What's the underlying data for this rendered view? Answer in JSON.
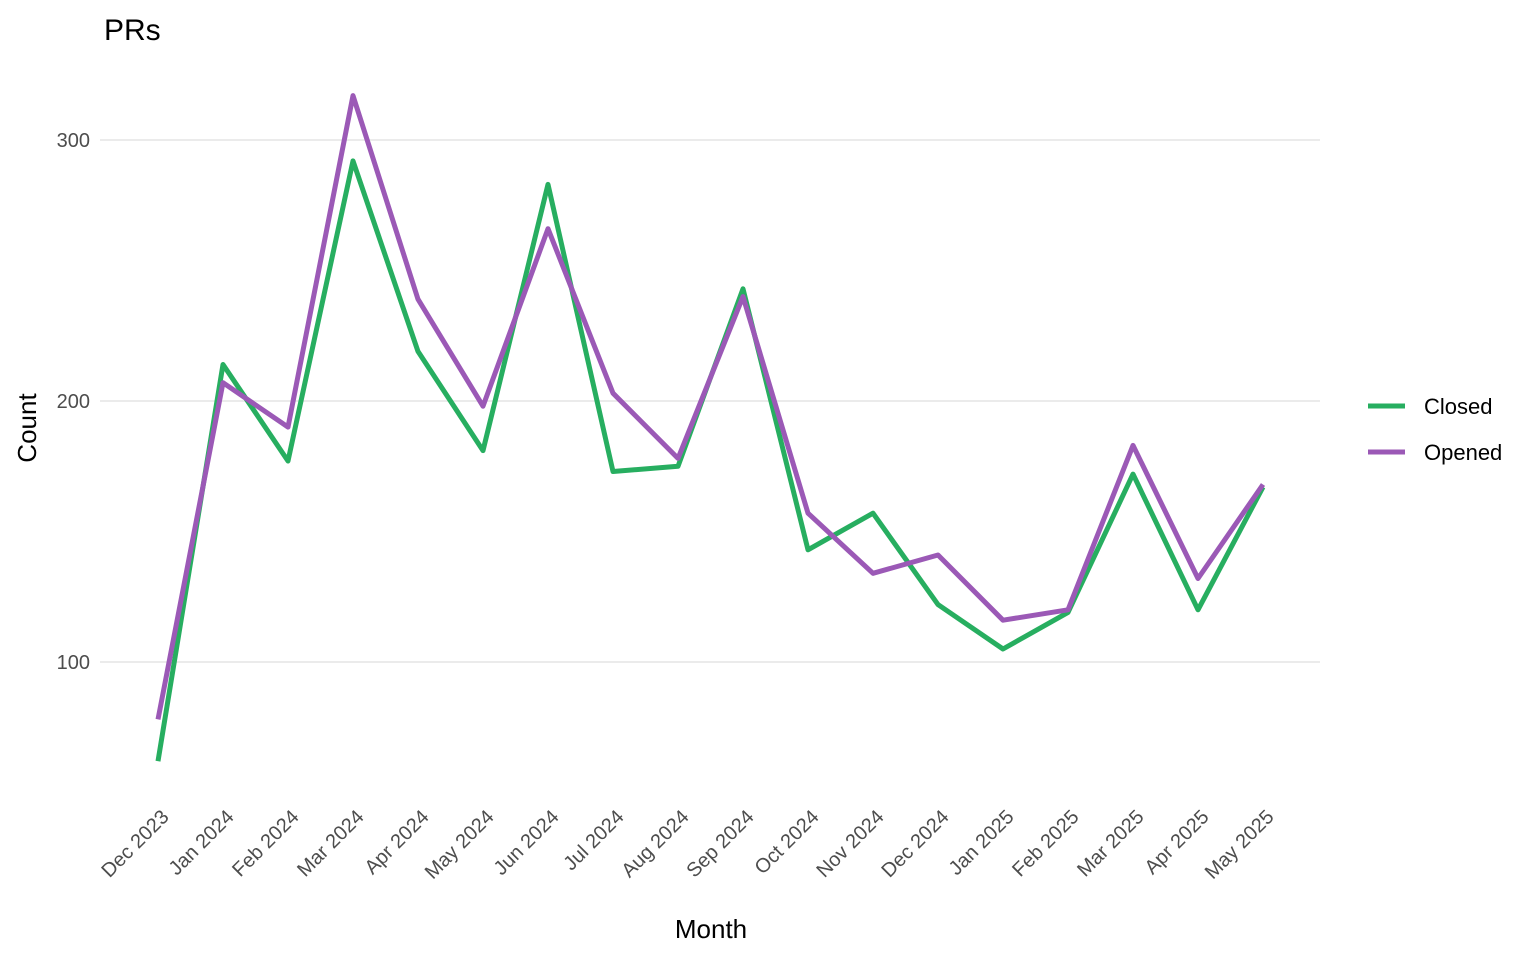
{
  "chart_data": {
    "type": "line",
    "title": "PRs",
    "xlabel": "Month",
    "ylabel": "Count",
    "categories": [
      "Dec 2023",
      "Jan 2024",
      "Feb 2024",
      "Mar 2024",
      "Apr 2024",
      "May 2024",
      "Jun 2024",
      "Jul 2024",
      "Aug 2024",
      "Sep 2024",
      "Oct 2024",
      "Nov 2024",
      "Dec 2024",
      "Jan 2025",
      "Feb 2025",
      "Mar 2025",
      "Apr 2025",
      "May 2025"
    ],
    "y_ticks": [
      100,
      200,
      300
    ],
    "ylim": [
      60,
      320
    ],
    "grid": true,
    "legend_position": "right",
    "series": [
      {
        "name": "Closed",
        "color": "#27ae60",
        "values": [
          62,
          214,
          177,
          292,
          219,
          181,
          283,
          173,
          175,
          243,
          143,
          157,
          122,
          105,
          119,
          172,
          120,
          167
        ]
      },
      {
        "name": "Opened",
        "color": "#9b59b6",
        "values": [
          78,
          207,
          190,
          317,
          239,
          198,
          266,
          203,
          178,
          240,
          157,
          134,
          141,
          116,
          120,
          183,
          132,
          168
        ]
      }
    ]
  }
}
